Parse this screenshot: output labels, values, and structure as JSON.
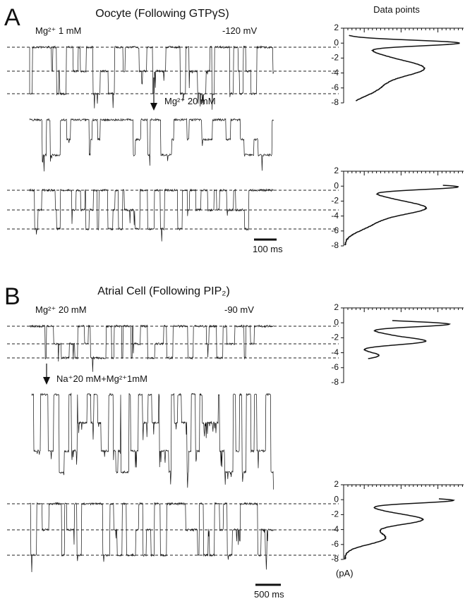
{
  "panel_a": {
    "letter": "A",
    "title": "Oocyte (Following GTPγS)",
    "histogram_title": "Data points",
    "condition": "Mg²⁺ 1 mM",
    "voltage": "-120 mV",
    "treatment": "Mg²⁺ 20 mM",
    "scale_bar": "100 ms",
    "histograms": [
      {
        "yticks": [
          2,
          0,
          -2,
          -4,
          -6,
          -8
        ]
      },
      {
        "yticks": [
          2,
          0,
          -2,
          -4,
          -6,
          -8
        ]
      }
    ]
  },
  "panel_b": {
    "letter": "B",
    "title": "Atrial Cell (Following PIP₂)",
    "condition": "Mg²⁺ 20 mM",
    "voltage": "-90 mV",
    "treatment": "Na⁺20 mM+Mg²⁺1mM",
    "unit": "(pA)",
    "scale_bar": "500 ms",
    "histograms": [
      {
        "yticks": [
          2,
          0,
          -2,
          -4,
          -6,
          -8
        ]
      },
      {
        "yticks": [
          2,
          0,
          -2,
          -4,
          -6,
          -8
        ]
      }
    ]
  }
}
